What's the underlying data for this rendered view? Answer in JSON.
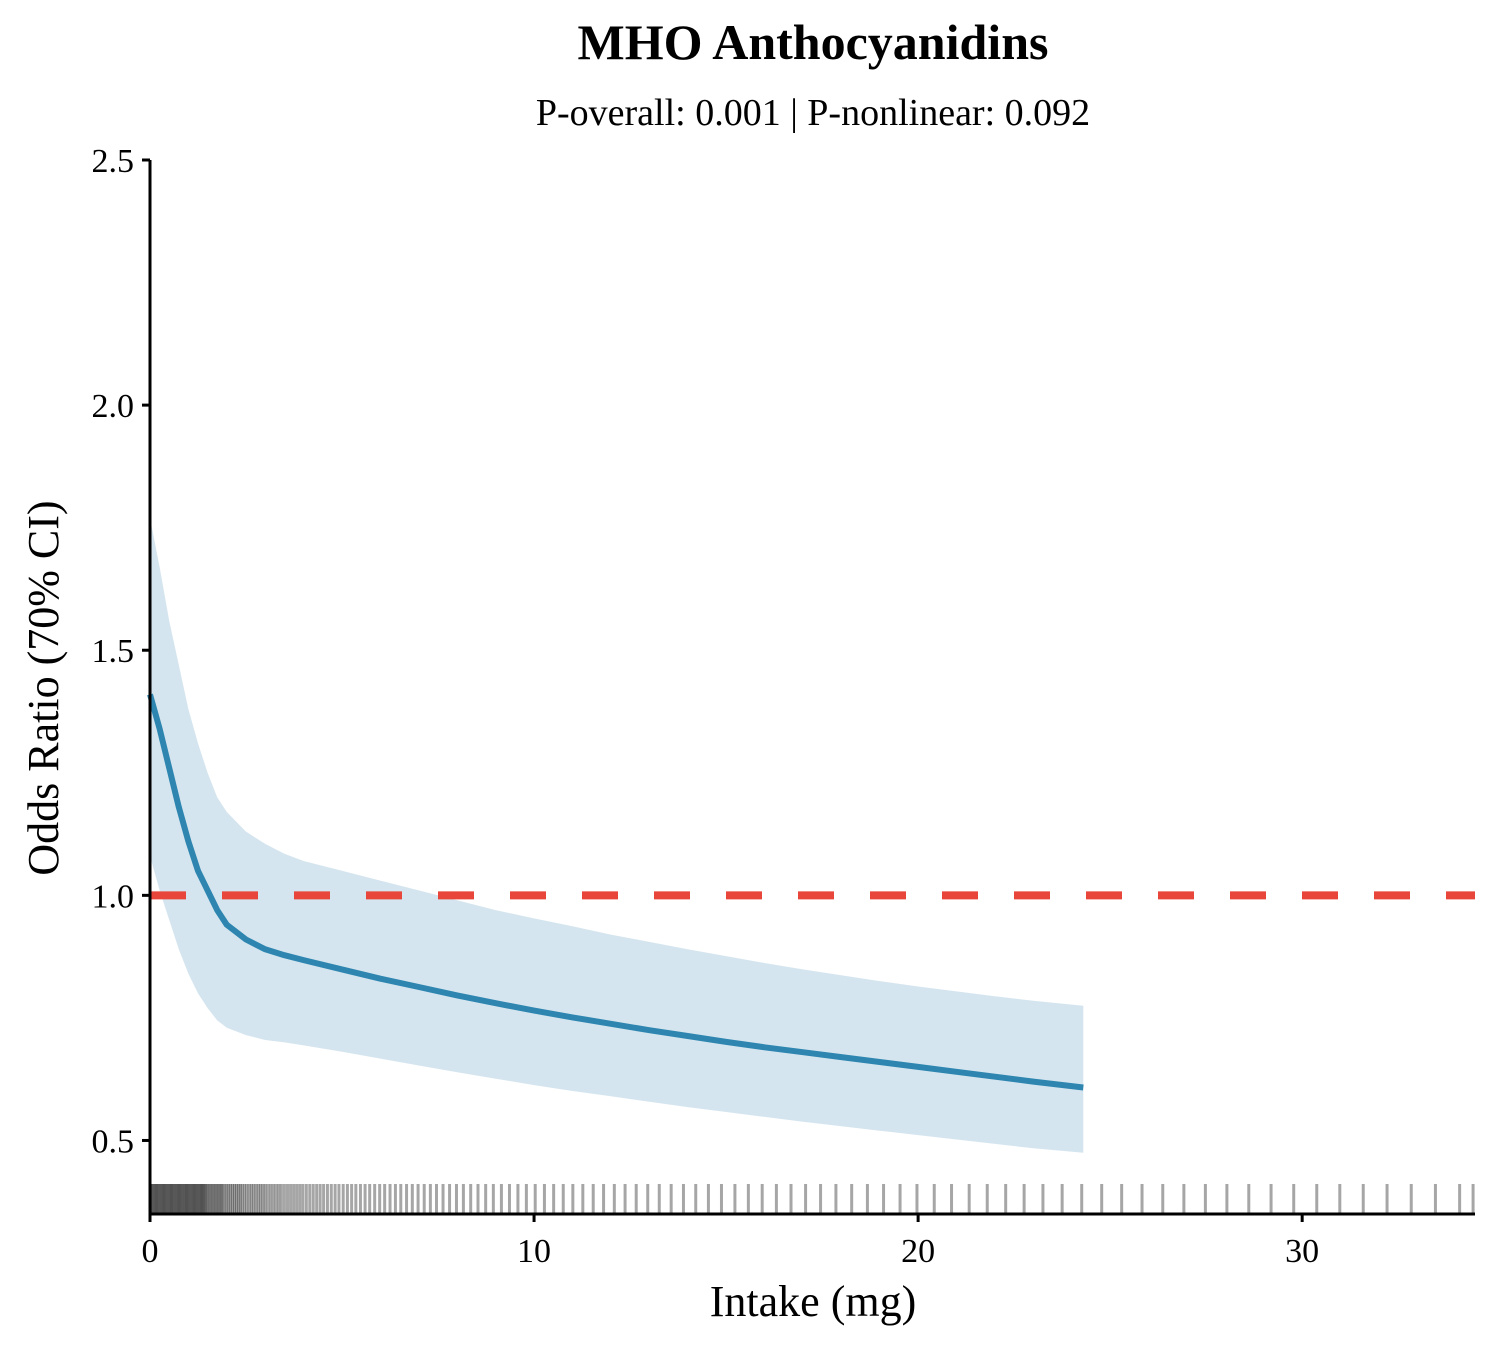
{
  "chart_data": {
    "type": "line",
    "title": "MHO Anthocyanidins",
    "subtitle": "P-overall: 0.001 | P-nonlinear: 0.092",
    "xlabel": "Intake (mg)",
    "ylabel": "Odds Ratio (70% CI)",
    "xlim": [
      0,
      34.5
    ],
    "ylim": [
      0.35,
      2.5
    ],
    "x_ticks": [
      0,
      10,
      20,
      30
    ],
    "y_ticks": [
      0.5,
      1.0,
      1.5,
      2.0,
      2.5
    ],
    "x_tick_labels": [
      "0",
      "10",
      "20",
      "30"
    ],
    "y_tick_labels": [
      "0.5",
      "1.0",
      "1.5",
      "2.0",
      "2.5"
    ],
    "grid": false,
    "legend": "none",
    "reference_line": {
      "y": 1.0,
      "style": "dashed",
      "color": "#e8463a"
    },
    "series": [
      {
        "role": "estimate",
        "color": "#2e86b0",
        "x": [
          0,
          0.25,
          0.5,
          0.75,
          1,
          1.25,
          1.5,
          1.75,
          2,
          2.5,
          3,
          3.5,
          4,
          5,
          6,
          7,
          8,
          9,
          10,
          11,
          12,
          13,
          14,
          15,
          16,
          17,
          18,
          19,
          20,
          21,
          22,
          23,
          24.3
        ],
        "y": [
          1.41,
          1.34,
          1.26,
          1.18,
          1.11,
          1.05,
          1.01,
          0.97,
          0.94,
          0.91,
          0.89,
          0.878,
          0.868,
          0.849,
          0.83,
          0.813,
          0.796,
          0.78,
          0.765,
          0.751,
          0.738,
          0.725,
          0.713,
          0.701,
          0.69,
          0.68,
          0.67,
          0.66,
          0.65,
          0.64,
          0.63,
          0.62,
          0.608
        ]
      },
      {
        "role": "ci_upper",
        "color": "#d5e5ef",
        "x": [
          0,
          0.25,
          0.5,
          0.75,
          1,
          1.25,
          1.5,
          1.75,
          2,
          2.5,
          3,
          3.5,
          4,
          5,
          6,
          7,
          8,
          9,
          10,
          11,
          12,
          13,
          14,
          15,
          16,
          17,
          18,
          19,
          20,
          21,
          22,
          23,
          24.3
        ],
        "y": [
          1.77,
          1.67,
          1.56,
          1.47,
          1.38,
          1.31,
          1.25,
          1.2,
          1.17,
          1.13,
          1.105,
          1.085,
          1.07,
          1.05,
          1.03,
          1.01,
          0.99,
          0.97,
          0.953,
          0.937,
          0.92,
          0.905,
          0.89,
          0.876,
          0.862,
          0.849,
          0.837,
          0.825,
          0.814,
          0.804,
          0.794,
          0.785,
          0.775
        ]
      },
      {
        "role": "ci_lower",
        "color": "#d5e5ef",
        "x": [
          0,
          0.25,
          0.5,
          0.75,
          1,
          1.25,
          1.5,
          1.75,
          2,
          2.5,
          3,
          3.5,
          4,
          5,
          6,
          7,
          8,
          9,
          10,
          11,
          12,
          13,
          14,
          15,
          16,
          17,
          18,
          19,
          20,
          21,
          22,
          23,
          24.3
        ],
        "y": [
          1.08,
          1.01,
          0.95,
          0.89,
          0.84,
          0.8,
          0.77,
          0.745,
          0.73,
          0.715,
          0.705,
          0.7,
          0.694,
          0.681,
          0.667,
          0.653,
          0.639,
          0.626,
          0.613,
          0.601,
          0.59,
          0.579,
          0.568,
          0.558,
          0.548,
          0.538,
          0.529,
          0.52,
          0.511,
          0.502,
          0.493,
          0.484,
          0.475
        ]
      }
    ],
    "rug": {
      "color": "#000000",
      "values": [
        0.02,
        0.05,
        0.08,
        0.11,
        0.14,
        0.17,
        0.2,
        0.23,
        0.26,
        0.29,
        0.32,
        0.35,
        0.38,
        0.41,
        0.44,
        0.47,
        0.5,
        0.53,
        0.56,
        0.59,
        0.62,
        0.65,
        0.68,
        0.71,
        0.74,
        0.77,
        0.8,
        0.83,
        0.86,
        0.89,
        0.92,
        0.95,
        0.98,
        1.01,
        1.04,
        1.07,
        1.1,
        1.13,
        1.16,
        1.19,
        1.22,
        1.25,
        1.28,
        1.31,
        1.34,
        1.37,
        1.4,
        1.43,
        1.46,
        1.5,
        1.54,
        1.58,
        1.62,
        1.66,
        1.7,
        1.74,
        1.78,
        1.82,
        1.86,
        1.9,
        1.95,
        2.0,
        2.05,
        2.1,
        2.15,
        2.2,
        2.25,
        2.3,
        2.35,
        2.4,
        2.46,
        2.52,
        2.58,
        2.64,
        2.7,
        2.76,
        2.82,
        2.88,
        2.94,
        3.0,
        3.07,
        3.14,
        3.21,
        3.28,
        3.35,
        3.42,
        3.5,
        3.58,
        3.66,
        3.74,
        3.82,
        3.9,
        3.98,
        4.07,
        4.16,
        4.25,
        4.34,
        4.43,
        4.52,
        4.62,
        4.72,
        4.82,
        4.92,
        5.03,
        5.14,
        5.25,
        5.36,
        5.48,
        5.6,
        5.72,
        5.85,
        5.98,
        6.11,
        6.25,
        6.39,
        6.53,
        6.68,
        6.83,
        6.98,
        7.14,
        7.3,
        7.46,
        7.63,
        7.8,
        7.98,
        8.16,
        8.35,
        8.54,
        8.74,
        8.94,
        9.15,
        9.36,
        9.58,
        9.8,
        10.03,
        10.27,
        10.51,
        10.76,
        11.01,
        11.27,
        11.54,
        11.81,
        12.09,
        12.37,
        12.66,
        12.96,
        13.26,
        13.57,
        13.89,
        14.21,
        14.54,
        14.88,
        15.23,
        15.58,
        15.94,
        16.31,
        16.69,
        17.07,
        17.46,
        17.86,
        18.27,
        18.68,
        19.1,
        19.53,
        19.97,
        20.42,
        20.87,
        21.33,
        21.8,
        22.28,
        22.76,
        23.25,
        23.75,
        24.26,
        24.78,
        25.3,
        25.83,
        26.37,
        26.92,
        27.48,
        28.04,
        28.61,
        29.19,
        29.78,
        30.38,
        30.98,
        31.59,
        32.21,
        32.84,
        33.47,
        34.1,
        34.45
      ]
    }
  }
}
